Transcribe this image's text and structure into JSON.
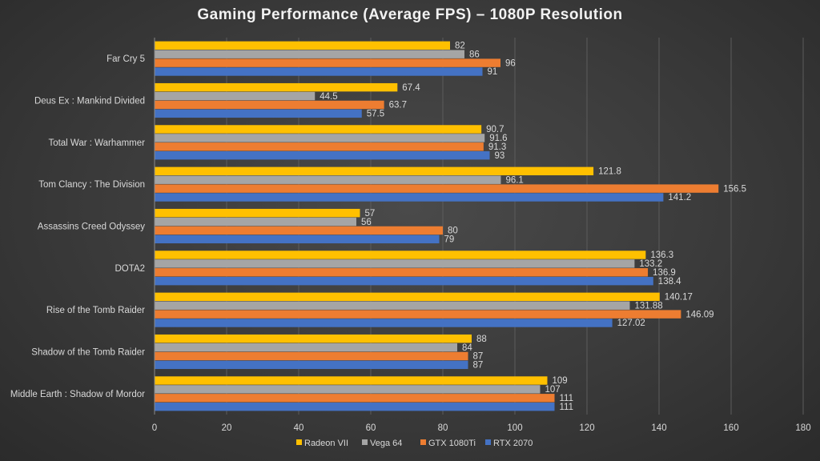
{
  "chart_data": {
    "type": "bar",
    "orientation": "horizontal",
    "title": "Gaming Performance (Average FPS) – 1080P Resolution",
    "xlabel": "",
    "ylabel": "",
    "xlim": [
      0,
      180
    ],
    "xticks": [
      0,
      20,
      40,
      60,
      80,
      100,
      120,
      140,
      160,
      180
    ],
    "grid": true,
    "legend_position": "bottom",
    "categories": [
      "Far Cry 5",
      "Deus Ex : Mankind Divided",
      "Total War : Warhammer",
      "Tom Clancy : The Division",
      "Assassins Creed Odyssey",
      "DOTA2",
      "Rise of the Tomb Raider",
      "Shadow of the Tomb Raider",
      "Middle Earth : Shadow of Mordor"
    ],
    "series": [
      {
        "name": "Radeon VII",
        "color": "#ffc000",
        "values": [
          82,
          67.4,
          90.7,
          121.8,
          57,
          136.3,
          140.17,
          88,
          109
        ],
        "labels": [
          "82",
          "67.4",
          "90.7",
          "121.8",
          "57",
          "136.3",
          "140.17",
          "88",
          "109"
        ]
      },
      {
        "name": "Vega 64",
        "color": "#a5a5a5",
        "values": [
          86,
          44.5,
          91.6,
          96.1,
          56,
          133.2,
          131.88,
          84,
          107
        ],
        "labels": [
          "86",
          "44.5",
          "91.6",
          "96.1",
          "56",
          "133.2",
          "131.88",
          "84",
          "107"
        ]
      },
      {
        "name": "GTX 1080Ti",
        "color": "#ed7d31",
        "values": [
          96,
          63.7,
          91.3,
          156.5,
          80,
          136.9,
          146.09,
          87,
          111
        ],
        "labels": [
          "96",
          "63.7",
          "91.3",
          "156.5",
          "80",
          "136.9",
          "146.09",
          "87",
          "111"
        ]
      },
      {
        "name": "RTX 2070",
        "color": "#4472c4",
        "values": [
          91,
          57.5,
          93,
          141.2,
          79,
          138.4,
          127.02,
          87,
          111
        ],
        "labels": [
          "91",
          "57.5",
          "93",
          "141.2",
          "79",
          "138.4",
          "127.02",
          "87",
          "111"
        ]
      }
    ]
  }
}
